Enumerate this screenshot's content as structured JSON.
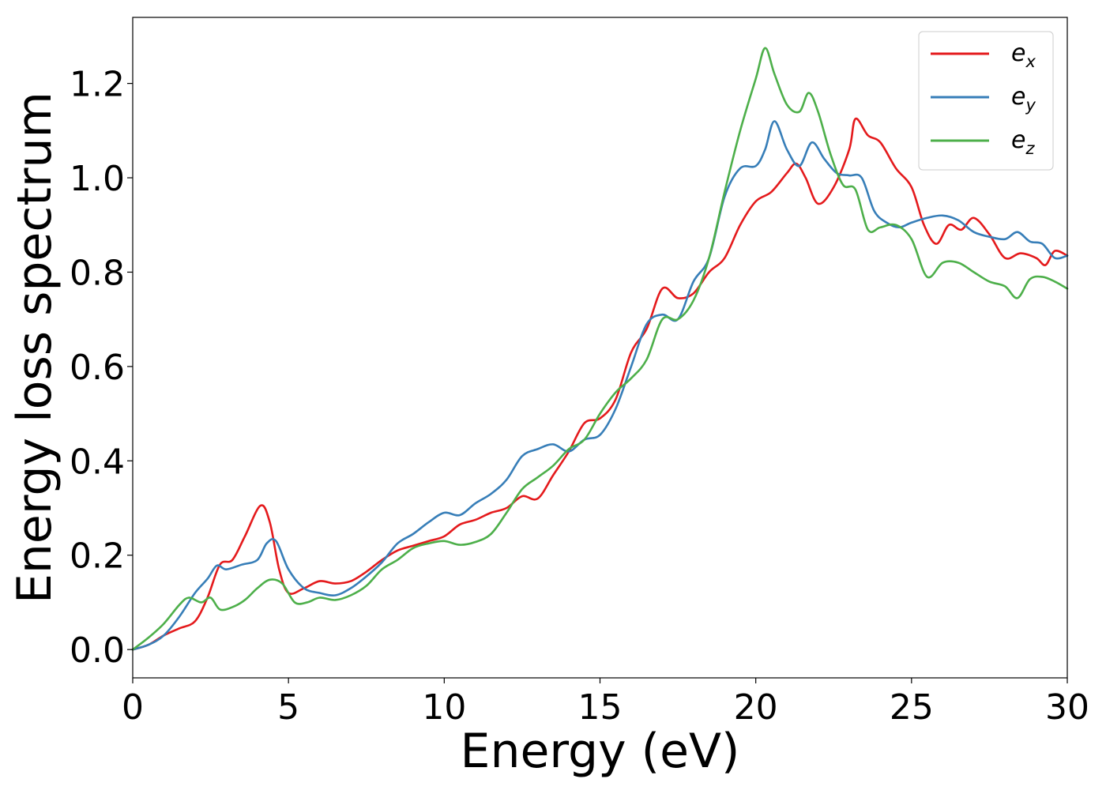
{
  "chart_data": {
    "type": "line",
    "xlabel": "Energy (eV)",
    "ylabel": "Energy loss spectrum",
    "xlim": [
      0,
      30
    ],
    "ylim": [
      -0.06,
      1.34
    ],
    "x_ticks": [
      0,
      5,
      10,
      15,
      20,
      25,
      30
    ],
    "y_ticks": [
      0.0,
      0.2,
      0.4,
      0.6,
      0.8,
      1.0,
      1.2
    ],
    "x_tick_labels": [
      "0",
      "5",
      "10",
      "15",
      "20",
      "25",
      "30"
    ],
    "y_tick_labels": [
      "0.0",
      "0.2",
      "0.4",
      "0.6",
      "0.8",
      "1.0",
      "1.2"
    ],
    "grid": false,
    "legend_position": "top-right",
    "series": [
      {
        "name": "e_x",
        "legend_base": "e",
        "legend_sub": "x",
        "color": "#e41a1c",
        "points": [
          [
            0,
            0
          ],
          [
            0.5,
            0.01
          ],
          [
            1,
            0.03
          ],
          [
            1.5,
            0.045
          ],
          [
            2,
            0.06
          ],
          [
            2.4,
            0.11
          ],
          [
            2.8,
            0.18
          ],
          [
            3.2,
            0.19
          ],
          [
            3.6,
            0.24
          ],
          [
            4.1,
            0.305
          ],
          [
            4.4,
            0.27
          ],
          [
            4.7,
            0.17
          ],
          [
            5,
            0.12
          ],
          [
            5.5,
            0.13
          ],
          [
            6,
            0.145
          ],
          [
            6.5,
            0.14
          ],
          [
            7,
            0.145
          ],
          [
            7.5,
            0.165
          ],
          [
            8,
            0.19
          ],
          [
            8.5,
            0.21
          ],
          [
            9,
            0.22
          ],
          [
            9.5,
            0.23
          ],
          [
            10,
            0.24
          ],
          [
            10.5,
            0.265
          ],
          [
            11,
            0.275
          ],
          [
            11.5,
            0.29
          ],
          [
            12,
            0.3
          ],
          [
            12.5,
            0.325
          ],
          [
            13,
            0.32
          ],
          [
            13.5,
            0.37
          ],
          [
            14,
            0.42
          ],
          [
            14.5,
            0.48
          ],
          [
            15,
            0.49
          ],
          [
            15.5,
            0.53
          ],
          [
            16,
            0.63
          ],
          [
            16.5,
            0.68
          ],
          [
            17,
            0.765
          ],
          [
            17.5,
            0.745
          ],
          [
            18,
            0.755
          ],
          [
            18.5,
            0.8
          ],
          [
            19,
            0.83
          ],
          [
            19.5,
            0.9
          ],
          [
            20,
            0.95
          ],
          [
            20.5,
            0.97
          ],
          [
            21,
            1.01
          ],
          [
            21.3,
            1.03
          ],
          [
            21.6,
            1.0
          ],
          [
            22,
            0.945
          ],
          [
            22.5,
            0.98
          ],
          [
            23,
            1.06
          ],
          [
            23.2,
            1.125
          ],
          [
            23.6,
            1.09
          ],
          [
            24,
            1.075
          ],
          [
            24.5,
            1.02
          ],
          [
            25,
            0.98
          ],
          [
            25.4,
            0.9
          ],
          [
            25.8,
            0.86
          ],
          [
            26.2,
            0.9
          ],
          [
            26.6,
            0.89
          ],
          [
            27,
            0.915
          ],
          [
            27.5,
            0.88
          ],
          [
            28,
            0.83
          ],
          [
            28.5,
            0.84
          ],
          [
            29,
            0.83
          ],
          [
            29.3,
            0.815
          ],
          [
            29.6,
            0.845
          ],
          [
            30,
            0.835
          ]
        ]
      },
      {
        "name": "e_y",
        "legend_base": "e",
        "legend_sub": "y",
        "color": "#377eb8",
        "points": [
          [
            0,
            0
          ],
          [
            0.5,
            0.01
          ],
          [
            1,
            0.03
          ],
          [
            1.5,
            0.07
          ],
          [
            2,
            0.12
          ],
          [
            2.4,
            0.15
          ],
          [
            2.7,
            0.178
          ],
          [
            3,
            0.17
          ],
          [
            3.5,
            0.18
          ],
          [
            4,
            0.19
          ],
          [
            4.3,
            0.225
          ],
          [
            4.6,
            0.23
          ],
          [
            5,
            0.17
          ],
          [
            5.5,
            0.13
          ],
          [
            6,
            0.12
          ],
          [
            6.5,
            0.115
          ],
          [
            7,
            0.13
          ],
          [
            7.5,
            0.155
          ],
          [
            8,
            0.185
          ],
          [
            8.5,
            0.225
          ],
          [
            9,
            0.245
          ],
          [
            9.5,
            0.27
          ],
          [
            10,
            0.29
          ],
          [
            10.5,
            0.285
          ],
          [
            11,
            0.31
          ],
          [
            11.5,
            0.33
          ],
          [
            12,
            0.36
          ],
          [
            12.5,
            0.41
          ],
          [
            13,
            0.425
          ],
          [
            13.5,
            0.435
          ],
          [
            14,
            0.42
          ],
          [
            14.5,
            0.445
          ],
          [
            15,
            0.455
          ],
          [
            15.5,
            0.51
          ],
          [
            16,
            0.6
          ],
          [
            16.5,
            0.69
          ],
          [
            17,
            0.71
          ],
          [
            17.5,
            0.7
          ],
          [
            18,
            0.78
          ],
          [
            18.5,
            0.83
          ],
          [
            19,
            0.96
          ],
          [
            19.5,
            1.02
          ],
          [
            20,
            1.025
          ],
          [
            20.3,
            1.06
          ],
          [
            20.6,
            1.12
          ],
          [
            21,
            1.06
          ],
          [
            21.4,
            1.025
          ],
          [
            21.8,
            1.075
          ],
          [
            22.2,
            1.04
          ],
          [
            22.6,
            1.01
          ],
          [
            23,
            1.005
          ],
          [
            23.4,
            1.0
          ],
          [
            23.8,
            0.93
          ],
          [
            24.2,
            0.905
          ],
          [
            24.6,
            0.895
          ],
          [
            25,
            0.905
          ],
          [
            25.5,
            0.915
          ],
          [
            26,
            0.92
          ],
          [
            26.5,
            0.91
          ],
          [
            27,
            0.885
          ],
          [
            27.5,
            0.875
          ],
          [
            28,
            0.87
          ],
          [
            28.4,
            0.885
          ],
          [
            28.8,
            0.865
          ],
          [
            29.2,
            0.86
          ],
          [
            29.6,
            0.83
          ],
          [
            30,
            0.835
          ]
        ]
      },
      {
        "name": "e_z",
        "legend_base": "e",
        "legend_sub": "z",
        "color": "#4daf4a",
        "points": [
          [
            0,
            0
          ],
          [
            0.5,
            0.025
          ],
          [
            1,
            0.055
          ],
          [
            1.5,
            0.095
          ],
          [
            1.8,
            0.11
          ],
          [
            2.2,
            0.1
          ],
          [
            2.5,
            0.11
          ],
          [
            2.8,
            0.085
          ],
          [
            3.2,
            0.09
          ],
          [
            3.6,
            0.105
          ],
          [
            4,
            0.13
          ],
          [
            4.4,
            0.148
          ],
          [
            4.8,
            0.14
          ],
          [
            5.2,
            0.1
          ],
          [
            5.6,
            0.1
          ],
          [
            6,
            0.11
          ],
          [
            6.5,
            0.105
          ],
          [
            7,
            0.115
          ],
          [
            7.5,
            0.135
          ],
          [
            8,
            0.17
          ],
          [
            8.5,
            0.19
          ],
          [
            9,
            0.215
          ],
          [
            9.5,
            0.225
          ],
          [
            10,
            0.23
          ],
          [
            10.5,
            0.222
          ],
          [
            11,
            0.228
          ],
          [
            11.5,
            0.245
          ],
          [
            12,
            0.29
          ],
          [
            12.5,
            0.34
          ],
          [
            13,
            0.365
          ],
          [
            13.5,
            0.39
          ],
          [
            14,
            0.425
          ],
          [
            14.5,
            0.445
          ],
          [
            15,
            0.5
          ],
          [
            15.5,
            0.545
          ],
          [
            16,
            0.575
          ],
          [
            16.5,
            0.615
          ],
          [
            17,
            0.7
          ],
          [
            17.5,
            0.7
          ],
          [
            18,
            0.74
          ],
          [
            18.5,
            0.83
          ],
          [
            19,
            0.97
          ],
          [
            19.5,
            1.1
          ],
          [
            20,
            1.21
          ],
          [
            20.3,
            1.275
          ],
          [
            20.6,
            1.22
          ],
          [
            21,
            1.155
          ],
          [
            21.4,
            1.14
          ],
          [
            21.7,
            1.18
          ],
          [
            22,
            1.14
          ],
          [
            22.4,
            1.05
          ],
          [
            22.8,
            0.985
          ],
          [
            23.2,
            0.975
          ],
          [
            23.6,
            0.89
          ],
          [
            24,
            0.895
          ],
          [
            24.5,
            0.9
          ],
          [
            25,
            0.87
          ],
          [
            25.5,
            0.79
          ],
          [
            26,
            0.82
          ],
          [
            26.5,
            0.82
          ],
          [
            27,
            0.8
          ],
          [
            27.5,
            0.78
          ],
          [
            28,
            0.77
          ],
          [
            28.4,
            0.745
          ],
          [
            28.8,
            0.785
          ],
          [
            29.2,
            0.79
          ],
          [
            29.6,
            0.78
          ],
          [
            30,
            0.765
          ]
        ]
      }
    ]
  }
}
